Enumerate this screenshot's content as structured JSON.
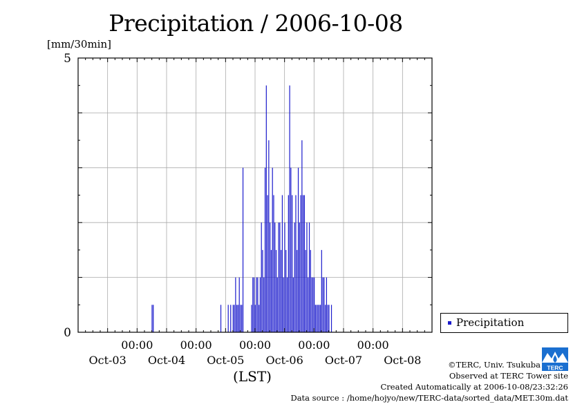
{
  "header": {
    "title": "Precipitation / 2006-10-08",
    "unit": "[mm/30min]"
  },
  "colors": {
    "bar": "#1a1acc",
    "grid": "#aaaaaa",
    "logo": "#1a6fd0"
  },
  "legend": {
    "label": "Precipitation"
  },
  "credits": {
    "copyright": "©TERC, Univ. Tsukuba",
    "observed": "Observed at TERC Tower site",
    "created": "Created Automatically at 2006-10-08/23:32:26",
    "source": "Data source : /home/hojyo/new/TERC-data/sorted_data/MET.30m.dat"
  },
  "logo": {
    "text": "TERC"
  },
  "chart_data": {
    "type": "bar",
    "title": "Precipitation / 2006-10-08",
    "ylabel": "[mm/30min]",
    "xlabel": "(LST)",
    "ylim": [
      0,
      5
    ],
    "yticks": [
      0,
      5
    ],
    "xlim_hours": [
      0,
      144
    ],
    "xticks": [
      {
        "time": "00:00",
        "date": "Oct-03",
        "hour": 24
      },
      {
        "time": "00:00",
        "date": "Oct-04",
        "hour": 48
      },
      {
        "time": "00:00",
        "date": "Oct-05",
        "hour": 72
      },
      {
        "time": "00:00",
        "date": "Oct-06",
        "hour": 96
      },
      {
        "time": "00:00",
        "date": "Oct-07",
        "hour": 120
      },
      {
        "time": "00:00",
        "date": "Oct-08",
        "hour": 144
      }
    ],
    "grid": true,
    "legend_position": "right",
    "series": [
      {
        "name": "Precipitation",
        "values": [
          [
            30.0,
            0.5
          ],
          [
            30.5,
            0.5
          ],
          [
            58.0,
            0.5
          ],
          [
            61.0,
            0.5
          ],
          [
            62.0,
            0.5
          ],
          [
            63.0,
            0.5
          ],
          [
            63.5,
            0.5
          ],
          [
            64.0,
            1.0
          ],
          [
            64.5,
            0.5
          ],
          [
            65.0,
            0.5
          ],
          [
            65.5,
            1.0
          ],
          [
            66.0,
            0.5
          ],
          [
            66.5,
            0.5
          ],
          [
            67.0,
            3.0
          ],
          [
            70.5,
            0.5
          ],
          [
            71.0,
            1.0
          ],
          [
            71.5,
            1.0
          ],
          [
            72.0,
            0.5
          ],
          [
            72.5,
            1.0
          ],
          [
            73.0,
            1.0
          ],
          [
            73.5,
            0.5
          ],
          [
            74.0,
            1.0
          ],
          [
            74.5,
            2.0
          ],
          [
            75.0,
            1.5
          ],
          [
            75.5,
            1.0
          ],
          [
            76.0,
            3.0
          ],
          [
            76.5,
            4.5
          ],
          [
            77.0,
            2.5
          ],
          [
            77.5,
            3.5
          ],
          [
            78.0,
            2.0
          ],
          [
            78.5,
            1.5
          ],
          [
            79.0,
            3.0
          ],
          [
            79.5,
            2.5
          ],
          [
            80.0,
            2.0
          ],
          [
            80.5,
            1.5
          ],
          [
            81.0,
            1.0
          ],
          [
            81.5,
            2.0
          ],
          [
            82.0,
            2.0
          ],
          [
            82.5,
            1.5
          ],
          [
            83.0,
            2.5
          ],
          [
            83.5,
            1.0
          ],
          [
            84.0,
            2.0
          ],
          [
            84.5,
            1.5
          ],
          [
            85.0,
            1.0
          ],
          [
            85.5,
            2.5
          ],
          [
            86.0,
            4.5
          ],
          [
            86.5,
            3.0
          ],
          [
            87.0,
            2.5
          ],
          [
            87.5,
            1.0
          ],
          [
            88.0,
            2.0
          ],
          [
            88.5,
            2.5
          ],
          [
            89.0,
            1.5
          ],
          [
            89.5,
            3.0
          ],
          [
            90.0,
            2.0
          ],
          [
            90.5,
            2.5
          ],
          [
            91.0,
            3.5
          ],
          [
            91.5,
            2.5
          ],
          [
            92.0,
            2.5
          ],
          [
            92.5,
            1.5
          ],
          [
            93.0,
            2.0
          ],
          [
            93.5,
            1.0
          ],
          [
            94.0,
            2.0
          ],
          [
            94.5,
            1.5
          ],
          [
            95.0,
            1.0
          ],
          [
            95.5,
            1.0
          ],
          [
            96.0,
            1.0
          ],
          [
            96.5,
            0.5
          ],
          [
            97.0,
            0.5
          ],
          [
            97.5,
            0.5
          ],
          [
            98.0,
            0.5
          ],
          [
            98.5,
            0.5
          ],
          [
            99.0,
            1.5
          ],
          [
            99.5,
            1.0
          ],
          [
            100.0,
            1.0
          ],
          [
            100.5,
            0.5
          ],
          [
            101.0,
            1.0
          ],
          [
            101.5,
            0.5
          ],
          [
            102.0,
            0.5
          ],
          [
            103.0,
            0.5
          ]
        ]
      }
    ]
  }
}
